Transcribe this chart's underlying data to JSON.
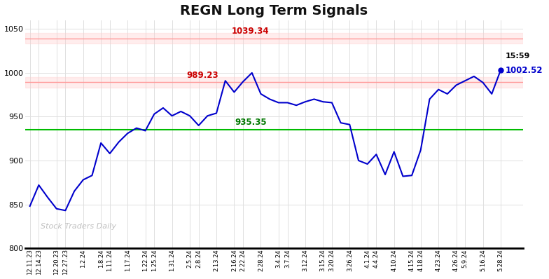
{
  "title": "REGN Long Term Signals",
  "watermark": "Stock Traders Daily",
  "resistance_upper": 1039.34,
  "resistance_lower": 989.23,
  "support": 935.35,
  "last_price": 1002.52,
  "last_time": "15:59",
  "ylim": [
    800,
    1060
  ],
  "yticks": [
    800,
    850,
    900,
    950,
    1000,
    1050
  ],
  "x_labels": [
    "12.11.23",
    "12.14.23",
    "12.20.23",
    "12.27.23",
    "1.2.24",
    "1.8.24",
    "1.11.24",
    "1.17.24",
    "1.22.24",
    "1.25.24",
    "1.31.24",
    "2.5.24",
    "2.8.24",
    "2.13.24",
    "2.16.24",
    "2.22.24",
    "2.28.24",
    "3.4.24",
    "3.7.24",
    "3.12.24",
    "3.15.24",
    "3.20.24",
    "3.26.24",
    "4.1.24",
    "4.4.24",
    "4.10.24",
    "4.15.24",
    "4.18.24",
    "4.23.24",
    "4.26.24",
    "5.9.24",
    "5.16.24",
    "5.28.24"
  ],
  "prices": [
    848,
    872,
    858,
    845,
    843,
    865,
    878,
    883,
    920,
    908,
    921,
    931,
    937,
    934,
    953,
    960,
    951,
    956,
    951,
    940,
    951,
    954,
    991,
    978,
    990,
    1000,
    976,
    970,
    966,
    966,
    963,
    967,
    970,
    967,
    966,
    943,
    941,
    900,
    896,
    907,
    884,
    910,
    882,
    883,
    912,
    970,
    981,
    976,
    986,
    991,
    996,
    989,
    976,
    1003
  ],
  "line_color": "#0000cc",
  "resistance_upper_band_color": "#ffcccc",
  "resistance_lower_band_color": "#ffcccc",
  "support_line_color": "#00bb00",
  "resistance_upper_line_color": "#ff9999",
  "resistance_lower_line_color": "#ff9999",
  "grid_color": "#e0e0e0",
  "bg_color": "#ffffff",
  "title_fontsize": 14,
  "watermark_color": "#c0c0c0",
  "band_alpha": 0.35
}
